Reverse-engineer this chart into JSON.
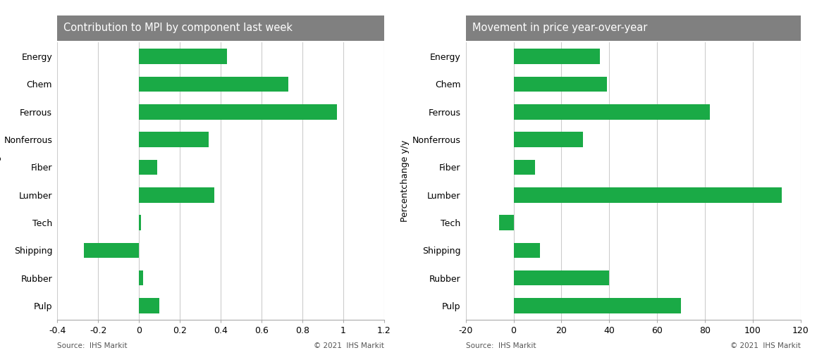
{
  "categories": [
    "Energy",
    "Chem",
    "Ferrous",
    "Nonferrous",
    "Fiber",
    "Lumber",
    "Tech",
    "Shipping",
    "Rubber",
    "Pulp"
  ],
  "left_values": [
    0.43,
    0.73,
    0.97,
    0.34,
    0.09,
    0.37,
    0.01,
    -0.27,
    0.02,
    0.1
  ],
  "right_values": [
    36,
    39,
    82,
    29,
    9,
    112,
    -6,
    11,
    40,
    70
  ],
  "left_title": "Contribution to MPI by component last week",
  "right_title": "Movement in price year-over-year",
  "left_ylabel": "Percentchange",
  "right_ylabel": "Percentchange y/y",
  "left_xlim": [
    -0.4,
    1.2
  ],
  "right_xlim": [
    -20,
    120
  ],
  "left_xticks": [
    -0.4,
    -0.2,
    0.0,
    0.2,
    0.4,
    0.6,
    0.8,
    1.0,
    1.2
  ],
  "right_xticks": [
    -20,
    0,
    20,
    40,
    60,
    80,
    100,
    120
  ],
  "bar_color": "#1aaa46",
  "background_color": "#ffffff",
  "header_color": "#808080",
  "header_text_color": "#ffffff",
  "grid_color": "#cccccc",
  "axis_border_color": "#aaaaaa",
  "source_left": "Source:  IHS Markit",
  "source_right": "Source:  IHS Markit",
  "copyright_left": "© 2021  IHS Markit",
  "copyright_right": "© 2021  IHS Markit",
  "title_fontsize": 10.5,
  "tick_fontsize": 9,
  "label_fontsize": 9,
  "source_fontsize": 7.5,
  "bar_height": 0.55
}
